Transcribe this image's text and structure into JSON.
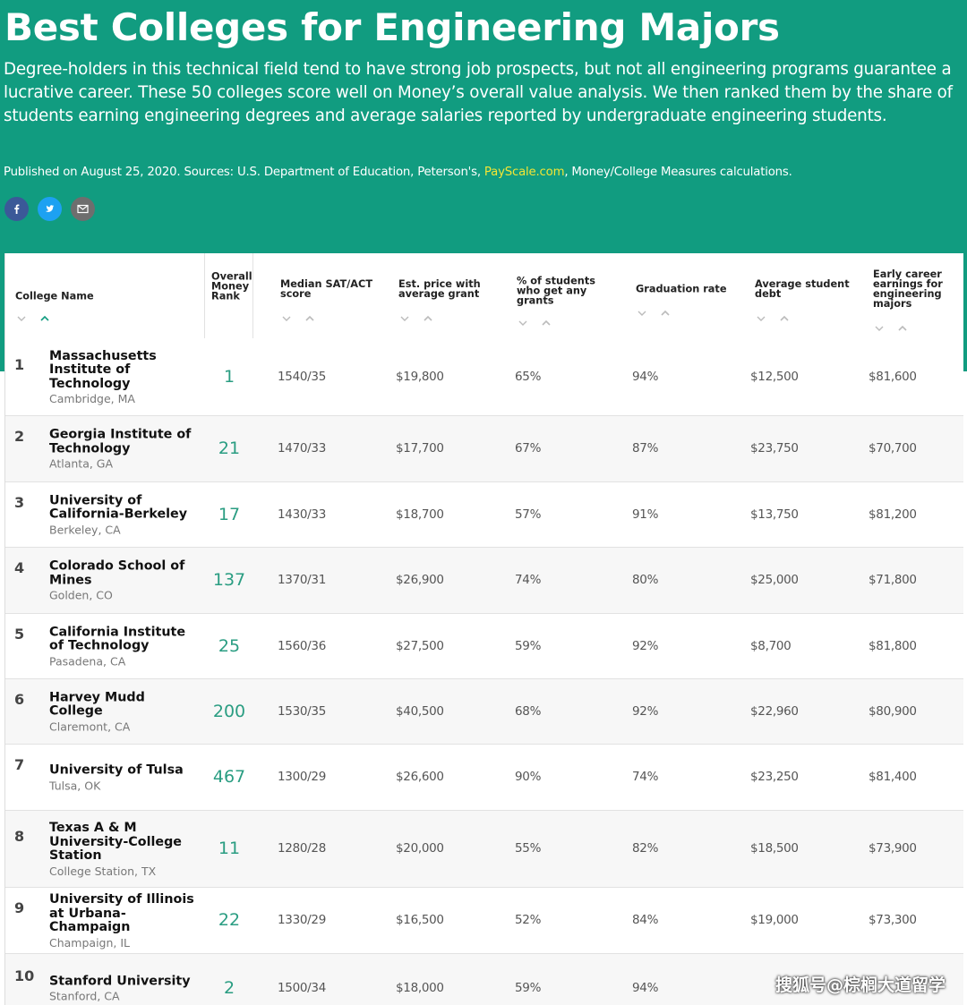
{
  "header": {
    "title": "Best Colleges for Engineering Majors",
    "description": "Degree-holders in this technical field tend to have strong job prospects, but not all engineering programs guarantee a lucrative career. These 50 colleges score well on Money’s overall value analysis. We then ranked them by the share of students earning engineering degrees and average salaries reported by undergraduate engineering students.",
    "published_before": "Published on August 25, 2020. Sources: U.S. Department of Education, Peterson's,",
    "published_link": "PayScale.com",
    "published_after": ", Money/College Measures calculations."
  },
  "table": {
    "columns": [
      "College Name",
      "Overall Money Rank",
      "Median SAT/ACT score",
      "Est. price with average grant",
      "% of students who get any grants",
      "Graduation rate",
      "Average student debt",
      "Early career earnings for engineering majors"
    ],
    "rows": [
      {
        "rank": 1,
        "name": "Massachusetts Institute of Technology",
        "location": "Cambridge, MA",
        "money_rank": 1,
        "sat": "1540/35",
        "price": "$19,800",
        "grants": "65%",
        "graduation": "94%",
        "debt": "$12,500",
        "earnings": "$81,600"
      },
      {
        "rank": 2,
        "name": "Georgia Institute of Technology",
        "location": "Atlanta, GA",
        "money_rank": 21,
        "sat": "1470/33",
        "price": "$17,700",
        "grants": "67%",
        "graduation": "87%",
        "debt": "$23,750",
        "earnings": "$70,700"
      },
      {
        "rank": 3,
        "name": "University of California-Berkeley",
        "location": "Berkeley, CA",
        "money_rank": 17,
        "sat": "1430/33",
        "price": "$18,700",
        "grants": "57%",
        "graduation": "91%",
        "debt": "$13,750",
        "earnings": "$81,200"
      },
      {
        "rank": 4,
        "name": "Colorado School of Mines",
        "location": "Golden, CO",
        "money_rank": 137,
        "sat": "1370/31",
        "price": "$26,900",
        "grants": "74%",
        "graduation": "80%",
        "debt": "$25,000",
        "earnings": "$71,800"
      },
      {
        "rank": 5,
        "name": "California Institute of Technology",
        "location": "Pasadena, CA",
        "money_rank": 25,
        "sat": "1560/36",
        "price": "$27,500",
        "grants": "59%",
        "graduation": "92%",
        "debt": "$8,700",
        "earnings": "$81,800"
      },
      {
        "rank": 6,
        "name": "Harvey Mudd College",
        "location": "Claremont, CA",
        "money_rank": 200,
        "sat": "1530/35",
        "price": "$40,500",
        "grants": "68%",
        "graduation": "92%",
        "debt": "$22,960",
        "earnings": "$80,900"
      },
      {
        "rank": 7,
        "name": "University of Tulsa",
        "location": "Tulsa, OK",
        "money_rank": 467,
        "sat": "1300/29",
        "price": "$26,600",
        "grants": "90%",
        "graduation": "74%",
        "debt": "$23,250",
        "earnings": "$81,400"
      },
      {
        "rank": 8,
        "name": "Texas A & M University-College Station",
        "location": "College Station, TX",
        "money_rank": 11,
        "sat": "1280/28",
        "price": "$20,000",
        "grants": "55%",
        "graduation": "82%",
        "debt": "$18,500",
        "earnings": "$73,900"
      },
      {
        "rank": 9,
        "name": "University of Illinois at Urbana-Champaign",
        "location": "Champaign, IL",
        "money_rank": 22,
        "sat": "1330/29",
        "price": "$16,500",
        "grants": "52%",
        "graduation": "84%",
        "debt": "$19,000",
        "earnings": "$73,300"
      },
      {
        "rank": 10,
        "name": "Stanford University",
        "location": "Stanford, CA",
        "money_rank": 2,
        "sat": "1500/34",
        "price": "$18,000",
        "grants": "59%",
        "graduation": "94%",
        "debt": "",
        "earnings": ""
      }
    ]
  },
  "watermark": "搜狐号@棕榈大道留学"
}
